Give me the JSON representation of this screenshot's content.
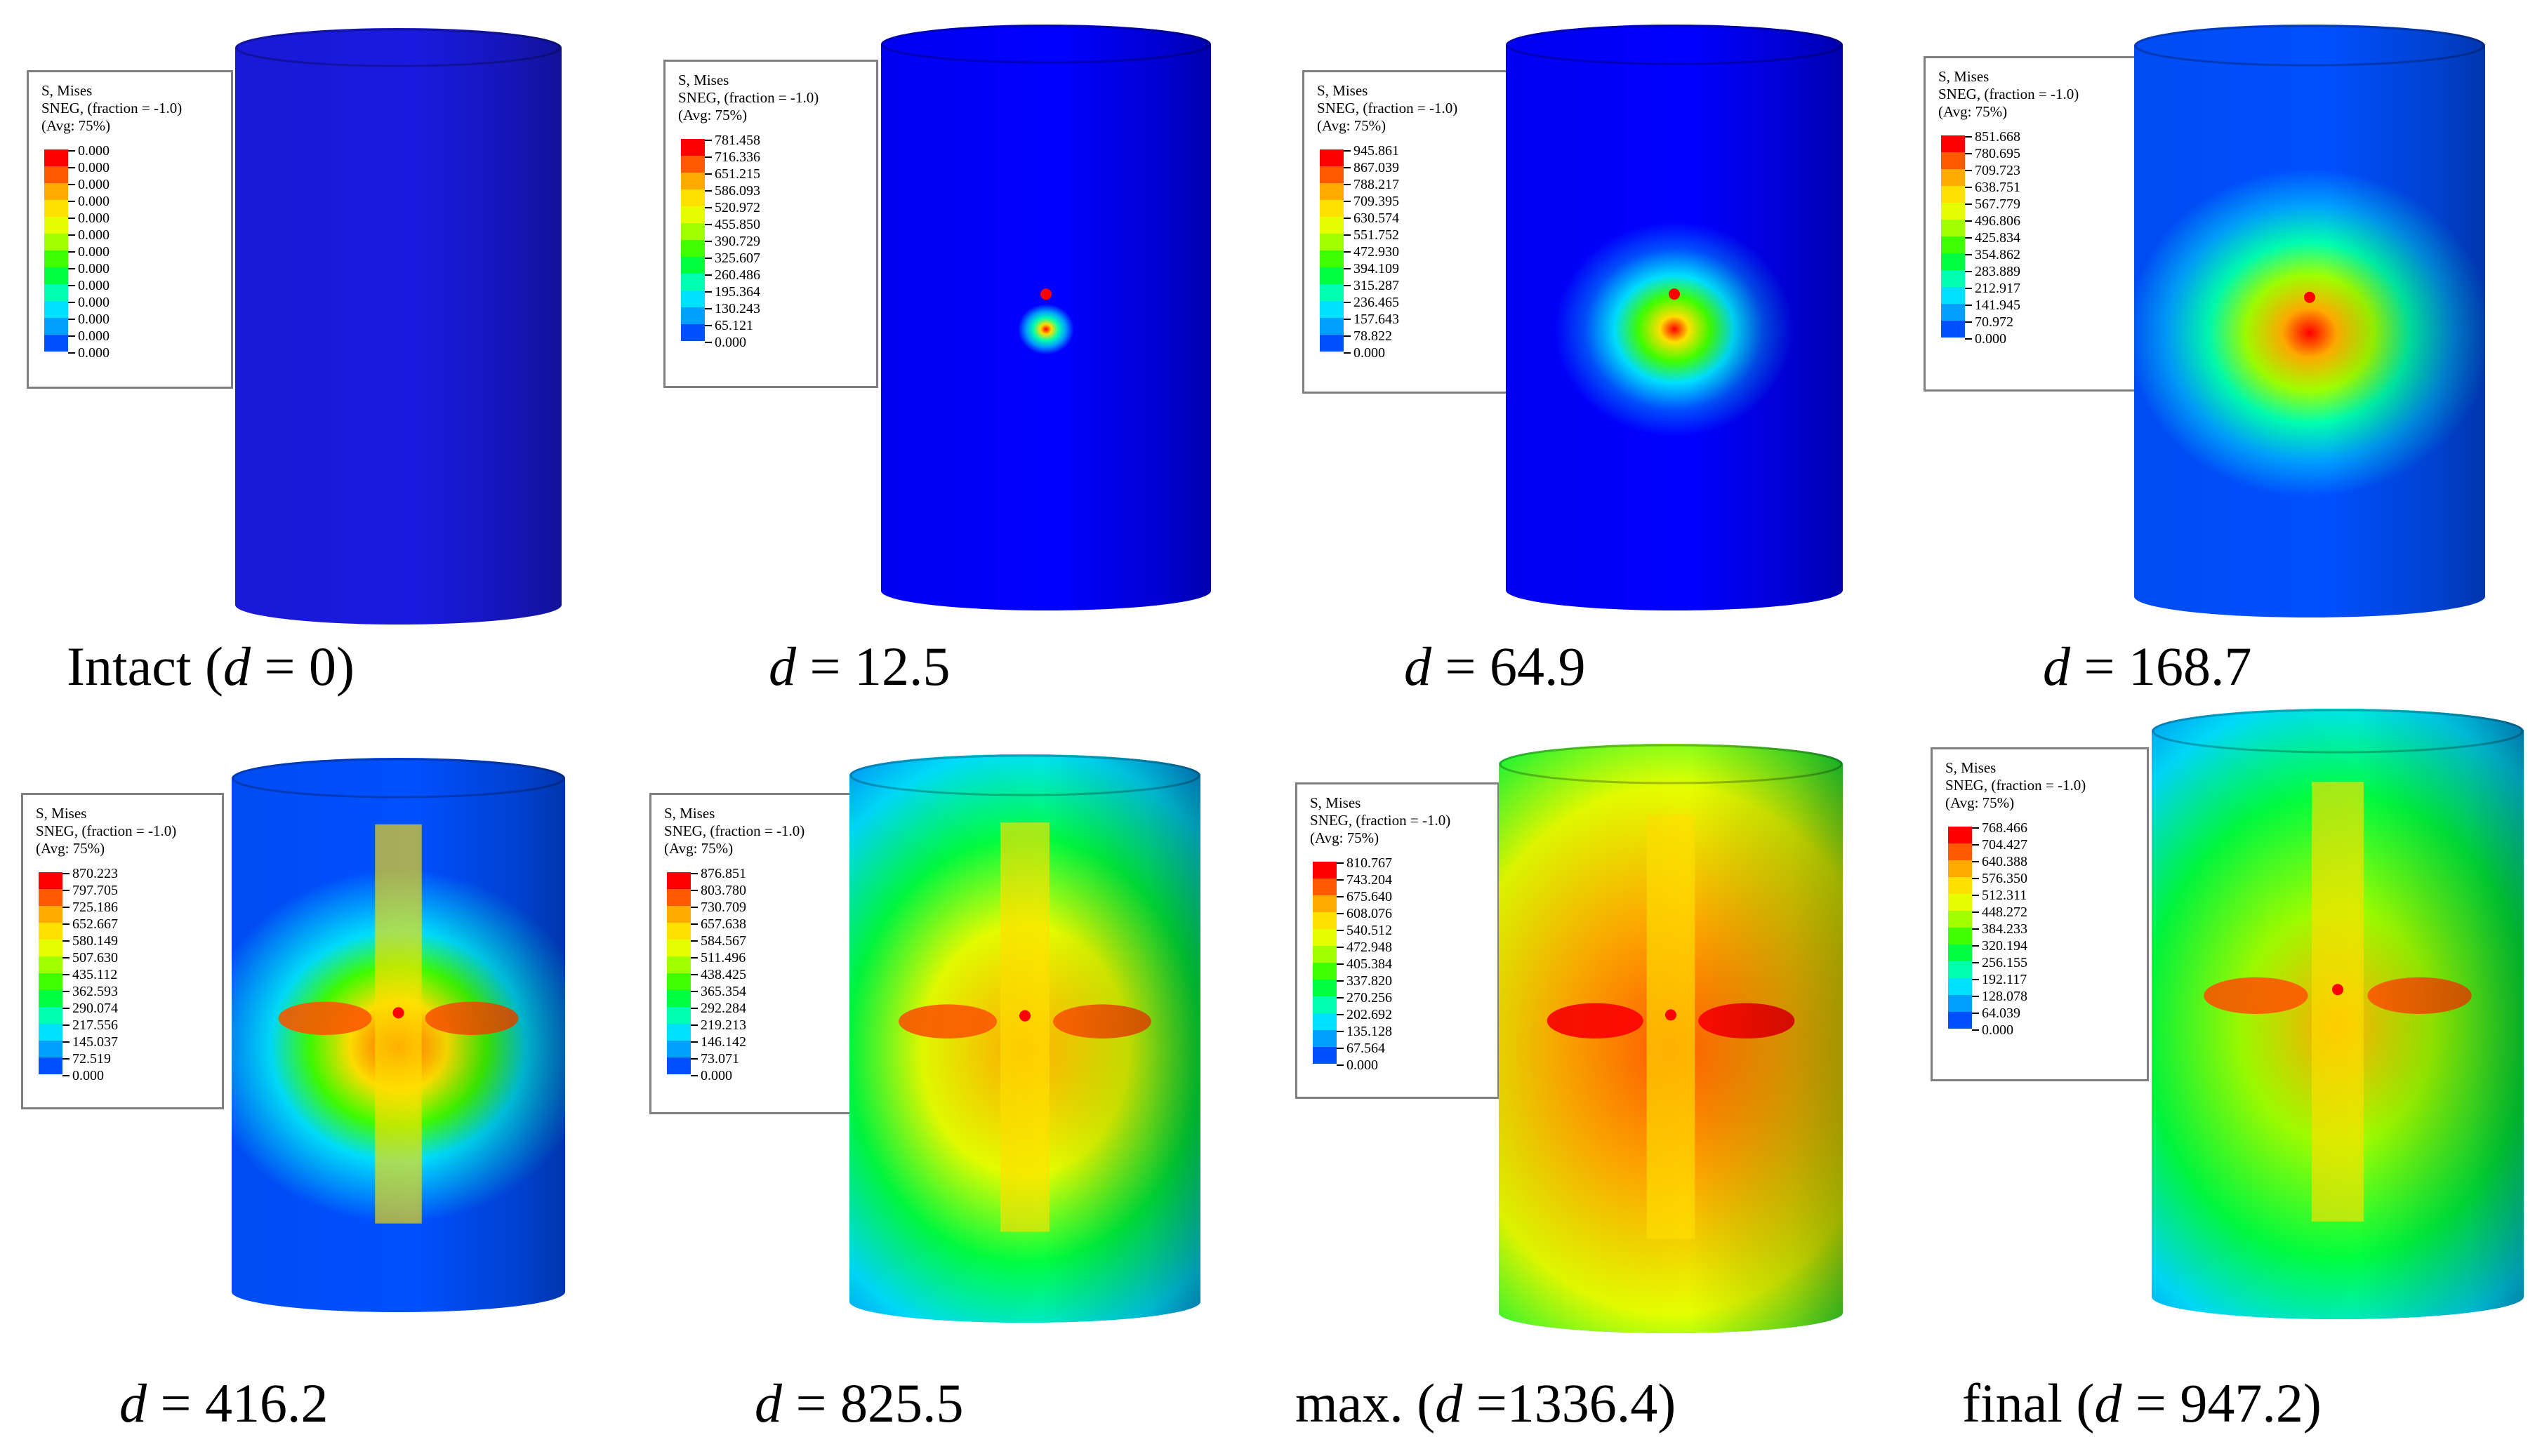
{
  "legend_header": [
    "S, Mises",
    "SNEG, (fraction = -1.0)",
    "(Avg: 75%)"
  ],
  "colors": {
    "scale": [
      "#ff0000",
      "#ff5a00",
      "#ffaa00",
      "#ffe000",
      "#e6ff00",
      "#a0ff00",
      "#40ff00",
      "#00ff40",
      "#00ffb0",
      "#00e0ff",
      "#00a0ff",
      "#0050ff",
      "#0000ff"
    ],
    "intact_blue": "#1a1ae0",
    "frame": "#7f7f7f"
  },
  "panels": [
    {
      "caption": {
        "pre": "Intact (",
        "var": "d",
        "post": " = 0)"
      },
      "legend_values": [
        "0.000",
        "0.000",
        "0.000",
        "0.000",
        "0.000",
        "0.000",
        "0.000",
        "0.000",
        "0.000",
        "0.000",
        "0.000",
        "0.000",
        "0.000"
      ],
      "stress_state": "intact"
    },
    {
      "caption": {
        "pre": "",
        "var": "d",
        "post": " = 12.5"
      },
      "legend_values": [
        "781.458",
        "716.336",
        "651.215",
        "586.093",
        "520.972",
        "455.850",
        "390.729",
        "325.607",
        "260.486",
        "195.364",
        "130.243",
        "65.121",
        "0.000"
      ],
      "stress_state": "local-spot"
    },
    {
      "caption": {
        "pre": "",
        "var": "d",
        "post": " = 64.9"
      },
      "legend_values": [
        "945.861",
        "867.039",
        "788.217",
        "709.395",
        "630.574",
        "551.752",
        "472.930",
        "394.109",
        "315.287",
        "236.465",
        "157.643",
        "78.822",
        "0.000"
      ],
      "stress_state": "spreading"
    },
    {
      "caption": {
        "pre": "",
        "var": "d",
        "post": " = 168.7"
      },
      "legend_values": [
        "851.668",
        "780.695",
        "709.723",
        "638.751",
        "567.779",
        "496.806",
        "425.834",
        "354.862",
        "283.889",
        "212.917",
        "141.945",
        "70.972",
        "0.000"
      ],
      "stress_state": "diamond"
    },
    {
      "caption": {
        "pre": "",
        "var": "d",
        "post": " = 416.2"
      },
      "legend_values": [
        "870.223",
        "797.705",
        "725.186",
        "652.667",
        "580.149",
        "507.630",
        "435.112",
        "362.593",
        "290.074",
        "217.556",
        "145.037",
        "72.519",
        "0.000"
      ],
      "stress_state": "cross-small"
    },
    {
      "caption": {
        "pre": "",
        "var": "d",
        "post": " = 825.5"
      },
      "legend_values": [
        "876.851",
        "803.780",
        "730.709",
        "657.638",
        "584.567",
        "511.496",
        "438.425",
        "365.354",
        "292.284",
        "219.213",
        "146.142",
        "73.071",
        "0.000"
      ],
      "stress_state": "cross-wide"
    },
    {
      "caption": {
        "pre": "max. (",
        "var": "d",
        "post": " =1336.4)"
      },
      "legend_values": [
        "810.767",
        "743.204",
        "675.640",
        "608.076",
        "540.512",
        "472.948",
        "405.384",
        "337.820",
        "270.256",
        "202.692",
        "135.128",
        "67.564",
        "0.000"
      ],
      "stress_state": "max"
    },
    {
      "caption": {
        "pre": "final (",
        "var": "d",
        "post": " = 947.2)"
      },
      "legend_values": [
        "768.466",
        "704.427",
        "640.388",
        "576.350",
        "512.311",
        "448.272",
        "384.233",
        "320.194",
        "256.155",
        "192.117",
        "128.078",
        "64.039",
        "0.000"
      ],
      "stress_state": "final"
    }
  ]
}
